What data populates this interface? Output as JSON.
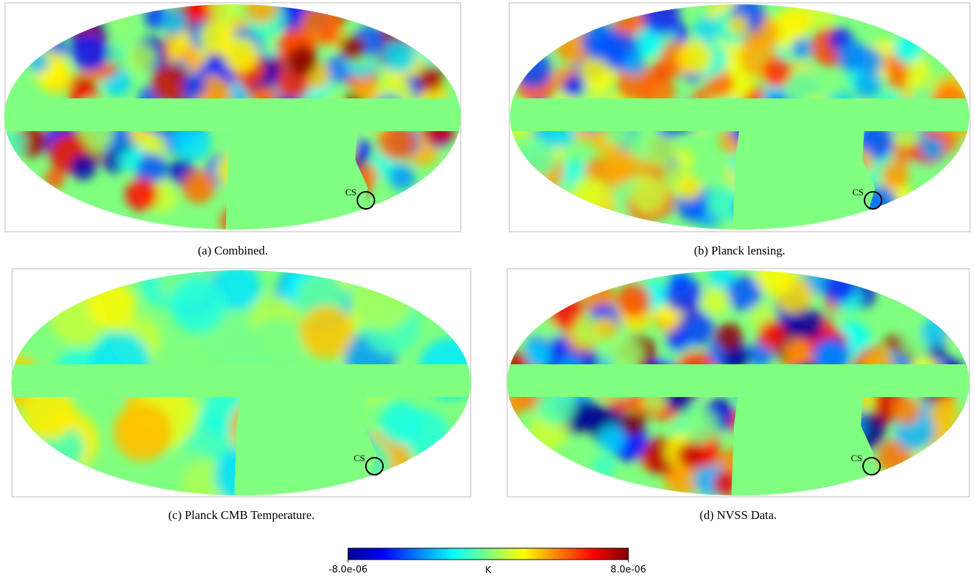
{
  "panels": [
    {
      "caption": "(a) Combined.",
      "marker": "CS"
    },
    {
      "caption": "(b) Planck lensing.",
      "marker": "CS"
    },
    {
      "caption": "(c) Planck CMB Temperature.",
      "marker": "CS"
    },
    {
      "caption": "(d) NVSS Data.",
      "marker": "CS"
    }
  ],
  "colorbar": {
    "unit": "K",
    "ticks": [
      {
        "value": -8e-06,
        "label": "-8.0e-06"
      },
      {
        "value": 8e-06,
        "label": "8.0e-06"
      }
    ]
  }
}
